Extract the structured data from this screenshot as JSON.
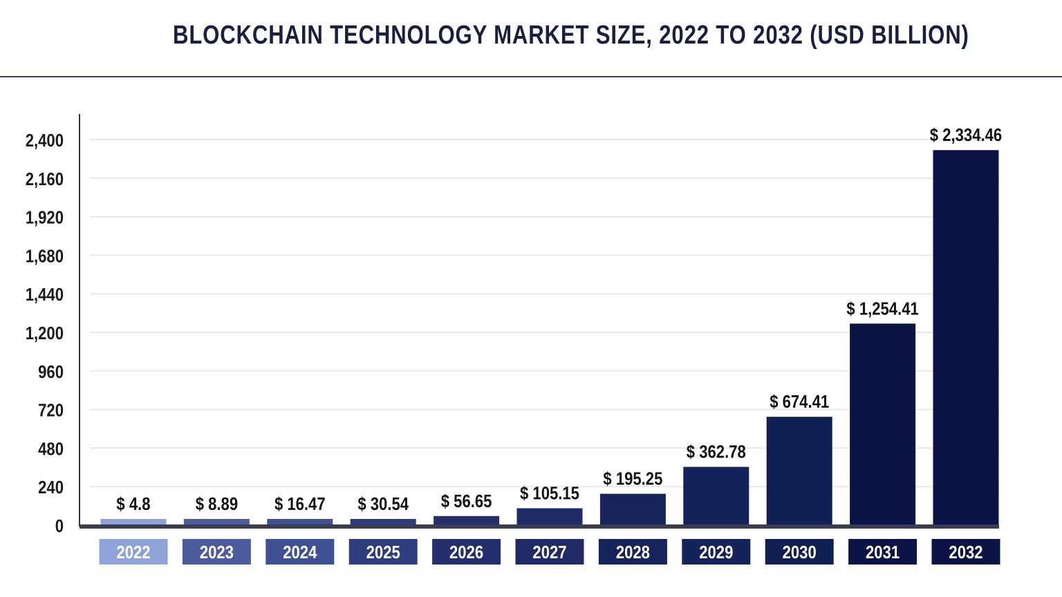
{
  "chart_data": {
    "type": "bar",
    "title": "BLOCKCHAIN TECHNOLOGY MARKET SIZE, 2022 TO 2032 (USD BILLION)",
    "xlabel": "",
    "ylabel": "",
    "categories": [
      "2022",
      "2023",
      "2024",
      "2025",
      "2026",
      "2027",
      "2028",
      "2029",
      "2030",
      "2031",
      "2032"
    ],
    "values": [
      4.8,
      8.89,
      16.47,
      30.54,
      56.65,
      105.15,
      195.25,
      362.78,
      674.41,
      1254.41,
      2334.46
    ],
    "data_labels": [
      "$ 4.8",
      "$ 8.89",
      "$ 16.47",
      "$ 30.54",
      "$ 56.65",
      "$ 105.15",
      "$ 195.25",
      "$ 362.78",
      "$ 674.41",
      "$ 1,254.41",
      "$ 2,334.46"
    ],
    "ylim": [
      0,
      2400
    ],
    "yticks": [
      0,
      240,
      480,
      720,
      960,
      1200,
      1440,
      1680,
      1920,
      2160,
      2400
    ],
    "ytick_labels": [
      "0",
      "240",
      "480",
      "720",
      "960",
      "1,200",
      "1,440",
      "1,680",
      "1,920",
      "2,160",
      "2,400"
    ],
    "grid": true,
    "legend": "none",
    "colors": [
      "#8fa3d8",
      "#4d5c9c",
      "#3f5093",
      "#2f3d7f",
      "#262f6e",
      "#1f2a66",
      "#16245a",
      "#14245a",
      "#112052",
      "#0c1445",
      "#0c1445"
    ]
  }
}
